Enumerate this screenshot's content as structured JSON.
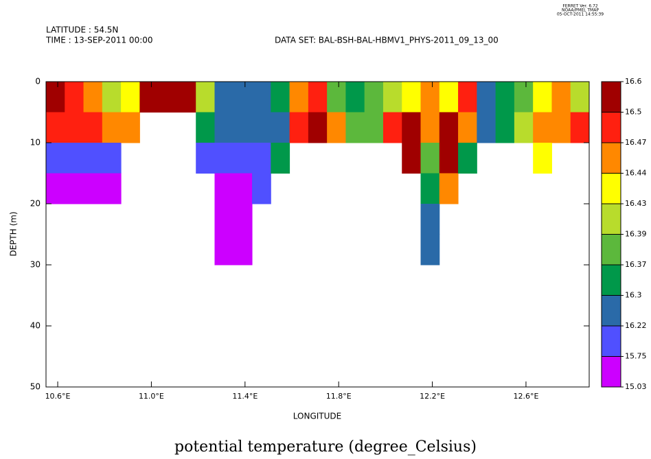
{
  "chart_data": {
    "type": "contour",
    "title": "potential temperature (degree_Celsius)",
    "header_left": [
      "LATITUDE : 54.5N",
      "TIME : 13-SEP-2011 00:00"
    ],
    "dataset": "DATA SET: BAL-BSH-BAL-HBMV1_PHYS-2011_09_13_00",
    "stamp": [
      "FERRET Ver. 6.72",
      "NOAA/PMEL TMAP",
      "05-OCT-2011 14:55:39"
    ],
    "x_label": "LONGITUDE",
    "y_label": "DEPTH (m)",
    "xlim": [
      10.55,
      12.87
    ],
    "xticks": [
      {
        "value": 10.6,
        "label": "10.6°E"
      },
      {
        "value": 11.0,
        "label": "11.0°E"
      },
      {
        "value": 11.4,
        "label": "11.4°E"
      },
      {
        "value": 11.8,
        "label": "11.8°E"
      },
      {
        "value": 12.2,
        "label": "12.2°E"
      },
      {
        "value": 12.6,
        "label": "12.6°E"
      }
    ],
    "ylim": [
      0,
      50
    ],
    "yticks": [
      0,
      10,
      20,
      30,
      40,
      50
    ],
    "y_inverted": true,
    "lon_bins": [
      10.55,
      10.63,
      10.71,
      10.79,
      10.87,
      10.95,
      11.03,
      11.11,
      11.19,
      11.27,
      11.35,
      11.43,
      11.51,
      11.59,
      11.67,
      11.75,
      11.83,
      11.91,
      11.99,
      12.07,
      12.15,
      12.23,
      12.31,
      12.39,
      12.47,
      12.55,
      12.63,
      12.71,
      12.79,
      12.87
    ],
    "depth_bins": [
      0,
      5,
      10,
      15,
      20,
      25,
      30
    ],
    "z": [
      [
        16.55,
        16.48,
        15.9,
        15.4,
        null,
        null
      ],
      [
        16.48,
        16.48,
        15.9,
        15.4,
        null,
        null
      ],
      [
        16.45,
        16.48,
        15.9,
        15.4,
        null,
        null
      ],
      [
        16.41,
        16.45,
        15.9,
        15.4,
        null,
        null
      ],
      [
        16.435,
        16.45,
        null,
        null,
        null,
        null
      ],
      [
        16.55,
        null,
        null,
        null,
        null,
        null
      ],
      [
        16.55,
        null,
        null,
        null,
        null,
        null
      ],
      [
        16.55,
        null,
        null,
        null,
        null,
        null
      ],
      [
        16.41,
        16.33,
        15.9,
        null,
        null,
        null
      ],
      [
        16.26,
        16.26,
        15.9,
        15.4,
        15.4,
        15.4
      ],
      [
        16.26,
        16.26,
        15.9,
        15.4,
        15.4,
        15.4
      ],
      [
        16.26,
        16.26,
        15.9,
        15.9,
        null,
        null
      ],
      [
        16.33,
        16.26,
        16.33,
        null,
        null,
        null
      ],
      [
        16.45,
        16.48,
        null,
        null,
        null,
        null
      ],
      [
        16.48,
        16.55,
        null,
        null,
        null,
        null
      ],
      [
        16.38,
        16.45,
        null,
        null,
        null,
        null
      ],
      [
        16.33,
        16.38,
        null,
        null,
        null,
        null
      ],
      [
        16.38,
        16.38,
        null,
        null,
        null,
        null
      ],
      [
        16.41,
        16.48,
        null,
        null,
        null,
        null
      ],
      [
        16.435,
        16.55,
        16.55,
        null,
        null,
        null
      ],
      [
        16.45,
        16.45,
        16.38,
        16.33,
        16.26,
        16.26
      ],
      [
        16.435,
        16.55,
        16.55,
        16.45,
        null,
        null
      ],
      [
        16.48,
        16.45,
        16.33,
        null,
        null,
        null
      ],
      [
        16.26,
        16.26,
        null,
        null,
        null,
        null
      ],
      [
        16.33,
        16.33,
        null,
        null,
        null,
        null
      ],
      [
        16.38,
        16.41,
        null,
        null,
        null,
        null
      ],
      [
        16.435,
        16.45,
        16.435,
        null,
        null,
        null
      ],
      [
        16.45,
        16.45,
        null,
        null,
        null,
        null
      ],
      [
        16.41,
        16.48,
        null,
        null,
        null,
        null
      ]
    ],
    "levels": [
      15.03,
      15.75,
      16.22,
      16.3,
      16.37,
      16.39,
      16.43,
      16.44,
      16.47,
      16.5,
      16.6
    ],
    "colors": [
      "#cc00ff",
      "#5050ff",
      "#2a6aa8",
      "#00984a",
      "#5cb83c",
      "#b8dc2c",
      "#ffff00",
      "#ff8800",
      "#ff2010",
      "#a00000"
    ]
  }
}
